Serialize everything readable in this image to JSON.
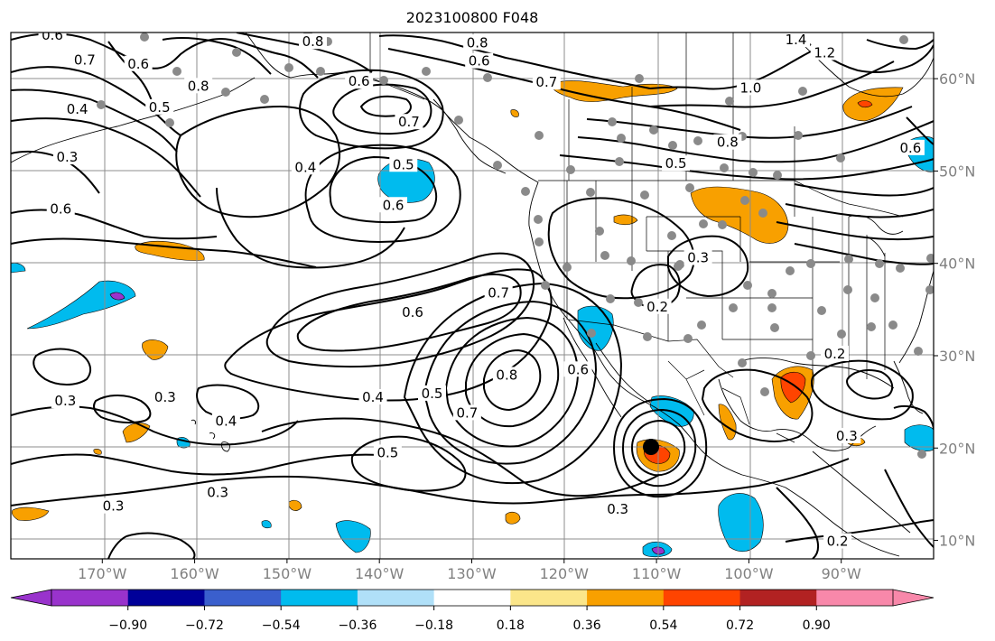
{
  "title": "2023100800 F048",
  "lon_ticks": [
    {
      "label": "170°W",
      "lon": -170
    },
    {
      "label": "160°W",
      "lon": -160
    },
    {
      "label": "150°W",
      "lon": -150
    },
    {
      "label": "140°W",
      "lon": -140
    },
    {
      "label": "130°W",
      "lon": -130
    },
    {
      "label": "120°W",
      "lon": -120
    },
    {
      "label": "110°W",
      "lon": -110
    },
    {
      "label": "100°W",
      "lon": -100
    },
    {
      "label": "90°W",
      "lon": -90
    }
  ],
  "lat_ticks": [
    {
      "label": "60°N",
      "lat": 60
    },
    {
      "label": "50°N",
      "lat": 50
    },
    {
      "label": "40°N",
      "lat": 40
    },
    {
      "label": "30°N",
      "lat": 30
    },
    {
      "label": "20°N",
      "lat": 20
    },
    {
      "label": "10°N",
      "lat": 10
    }
  ],
  "extent": {
    "lon_min": -179.9,
    "lon_max": -80.0,
    "lat_min": 8.0,
    "lat_max": 65.0
  },
  "colorbar": {
    "levels": [
      "−0.90",
      "−0.72",
      "−0.54",
      "−0.36",
      "−0.18",
      "0.18",
      "0.36",
      "0.54",
      "0.72",
      "0.90"
    ],
    "colors": [
      "#9933cc",
      "#000099",
      "#3a5fcd",
      "#00bbee",
      "#b0e0f8",
      "#ffffff",
      "#fbe68a",
      "#f8a000",
      "#ff4400",
      "#b22222",
      "#f888aa"
    ]
  },
  "contour_labels": [
    {
      "text": "0.6",
      "lon": -175.4,
      "lat": 64.7
    },
    {
      "text": "0.7",
      "lon": -171.9,
      "lat": 62.0
    },
    {
      "text": "0.6",
      "lon": -166.1,
      "lat": 61.6
    },
    {
      "text": "0.8",
      "lon": -159.6,
      "lat": 59.2
    },
    {
      "text": "0.8",
      "lon": -147.2,
      "lat": 64.0
    },
    {
      "text": "0.8",
      "lon": -129.4,
      "lat": 63.9
    },
    {
      "text": "0.6",
      "lon": -129.2,
      "lat": 61.9
    },
    {
      "text": "0.6",
      "lon": -142.2,
      "lat": 59.7
    },
    {
      "text": "0.5",
      "lon": -163.8,
      "lat": 56.9
    },
    {
      "text": "0.4",
      "lon": -172.7,
      "lat": 56.7
    },
    {
      "text": "0.3",
      "lon": -173.8,
      "lat": 51.5
    },
    {
      "text": "0.6",
      "lon": -174.5,
      "lat": 45.9
    },
    {
      "text": "0.4",
      "lon": -148.0,
      "lat": 50.4
    },
    {
      "text": "0.7",
      "lon": -136.8,
      "lat": 55.3
    },
    {
      "text": "0.5",
      "lon": -137.4,
      "lat": 50.7
    },
    {
      "text": "0.6",
      "lon": -138.5,
      "lat": 46.3
    },
    {
      "text": "0.7",
      "lon": -121.9,
      "lat": 59.6
    },
    {
      "text": "1.4",
      "lon": -94.9,
      "lat": 64.2
    },
    {
      "text": "1.2",
      "lon": -91.8,
      "lat": 62.8
    },
    {
      "text": "1.0",
      "lon": -99.8,
      "lat": 59.0
    },
    {
      "text": "0.8",
      "lon": -102.3,
      "lat": 53.1
    },
    {
      "text": "0.5",
      "lon": -107.9,
      "lat": 50.8
    },
    {
      "text": "0.6",
      "lon": -82.5,
      "lat": 52.5
    },
    {
      "text": "0.3",
      "lon": -105.5,
      "lat": 40.6
    },
    {
      "text": "0.7",
      "lon": -127.1,
      "lat": 36.8
    },
    {
      "text": "0.6",
      "lon": -136.4,
      "lat": 34.7
    },
    {
      "text": "0.2",
      "lon": -109.9,
      "lat": 35.3
    },
    {
      "text": "0.8",
      "lon": -126.2,
      "lat": 27.9
    },
    {
      "text": "0.6",
      "lon": -118.5,
      "lat": 28.5
    },
    {
      "text": "0.4",
      "lon": -140.7,
      "lat": 25.5
    },
    {
      "text": "0.5",
      "lon": -134.3,
      "lat": 25.9
    },
    {
      "text": "0.7",
      "lon": -130.5,
      "lat": 23.8
    },
    {
      "text": "0.3",
      "lon": -174.0,
      "lat": 25.1
    },
    {
      "text": "0.3",
      "lon": -163.2,
      "lat": 25.5
    },
    {
      "text": "0.4",
      "lon": -156.6,
      "lat": 22.9
    },
    {
      "text": "0.5",
      "lon": -139.1,
      "lat": 19.5
    },
    {
      "text": "0.3",
      "lon": -157.5,
      "lat": 15.2
    },
    {
      "text": "0.3",
      "lon": -168.8,
      "lat": 13.7
    },
    {
      "text": "0.3",
      "lon": -114.2,
      "lat": 13.4
    },
    {
      "text": "0.2",
      "lon": -90.7,
      "lat": 30.2
    },
    {
      "text": "0.3",
      "lon": -89.4,
      "lat": 21.3
    },
    {
      "text": "0.2",
      "lon": -90.4,
      "lat": 9.9
    }
  ]
}
